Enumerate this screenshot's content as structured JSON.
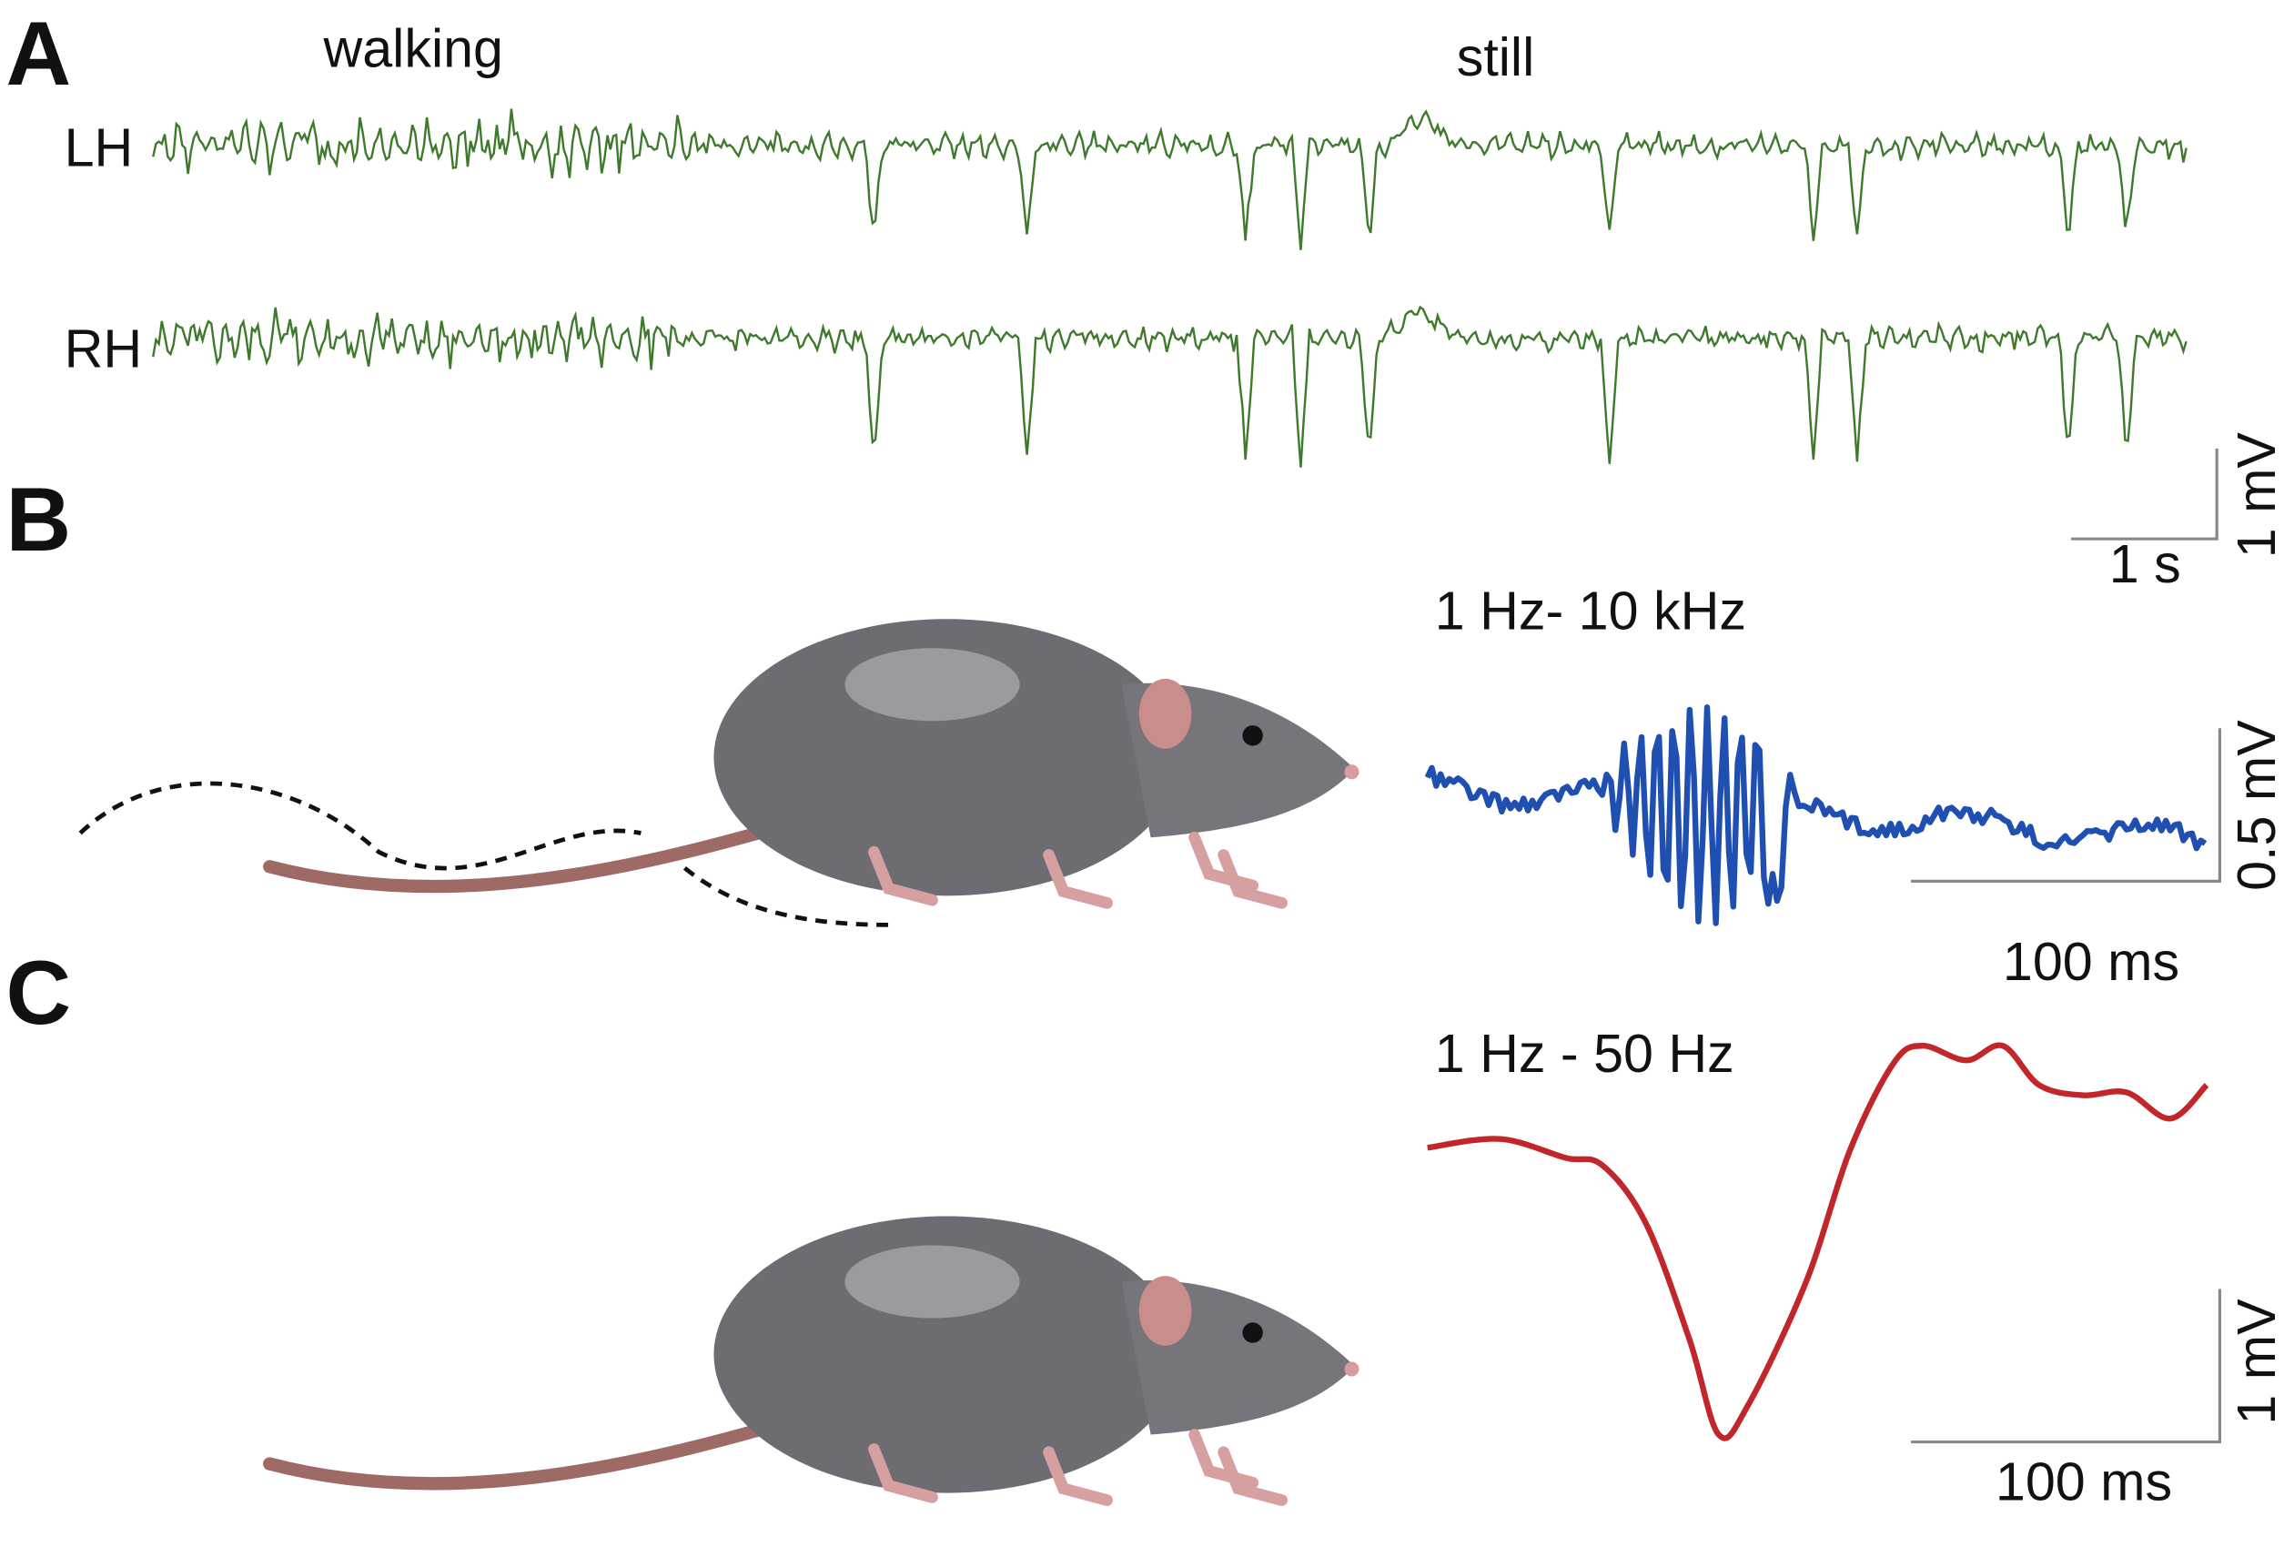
{
  "panels": [
    {
      "label": "A",
      "annotations": [
        "walking",
        "still"
      ],
      "channels": [
        "LH",
        "RH"
      ],
      "scale_bar": {
        "y": "1 mV",
        "x": "1 s"
      }
    },
    {
      "label": "B",
      "filter": "1 Hz- 10 kHz",
      "scale_bar": {
        "y": "0.5 mV",
        "x": "100 ms"
      }
    },
    {
      "label": "C",
      "filter": "1 Hz - 50 Hz",
      "scale_bar": {
        "y": "1 mV",
        "x": "100 ms"
      }
    }
  ]
}
